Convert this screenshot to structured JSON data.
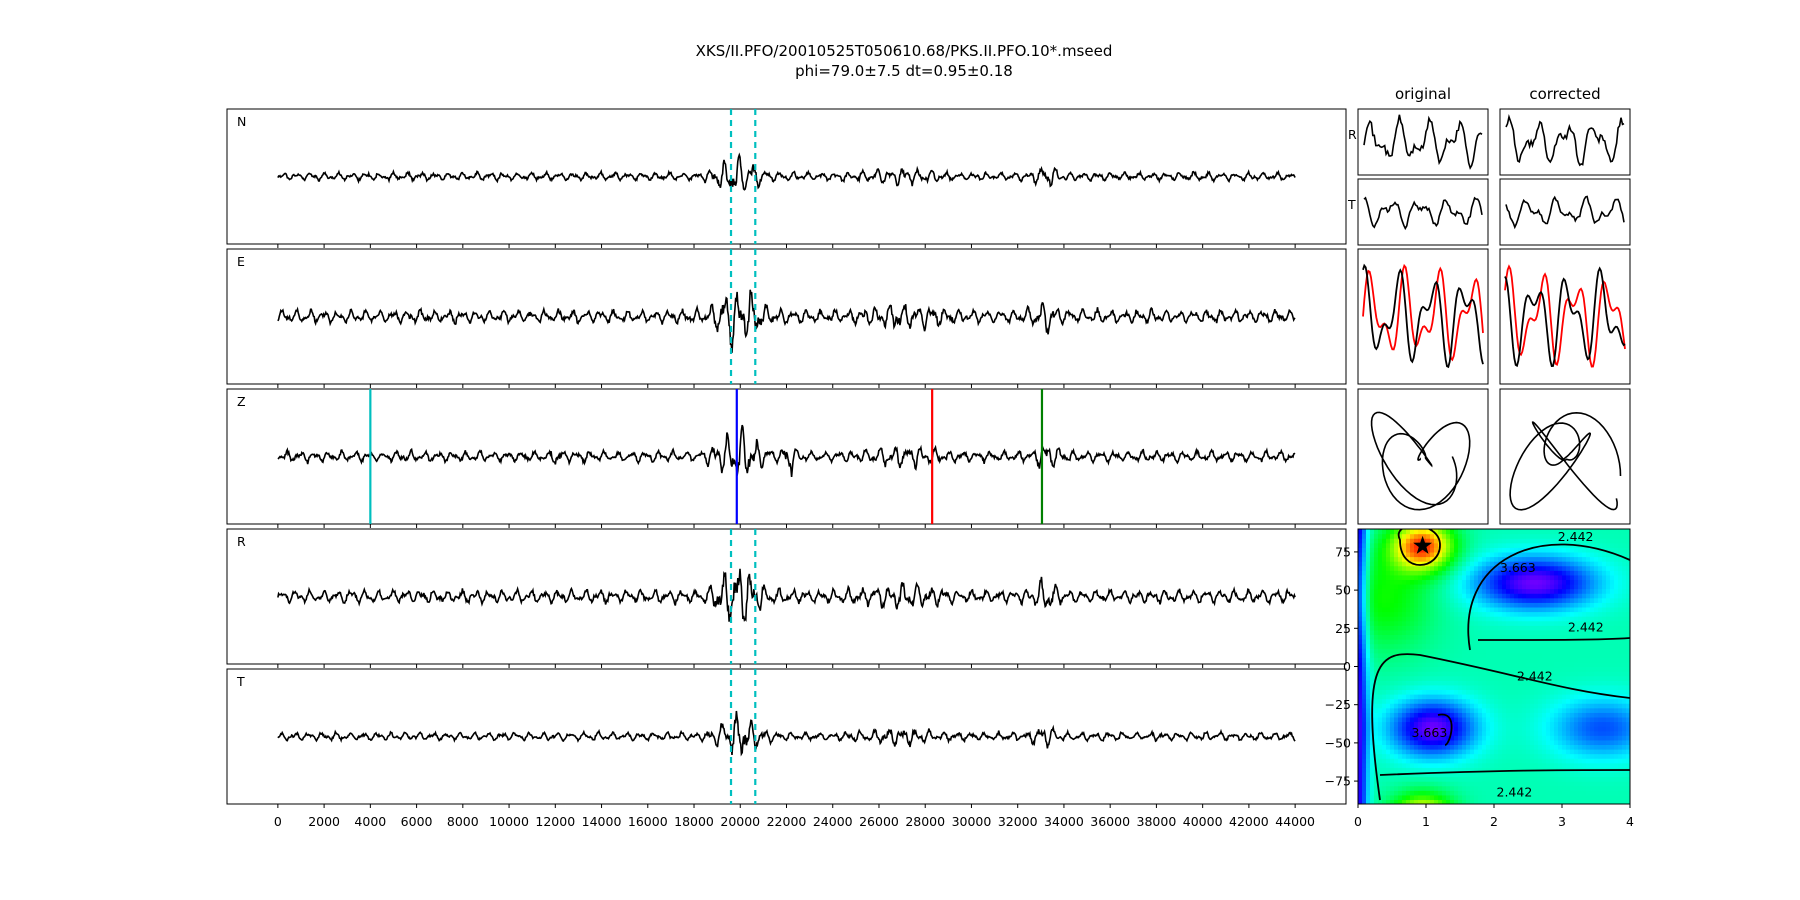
{
  "figure": {
    "title_line1": "XKS/II.PFO/20010525T050610.68/PKS.II.PFO.10*.mseed",
    "title_line2": "phi=79.0±7.5 dt=0.95±0.18"
  },
  "chart_data": [
    {
      "type": "line",
      "name": "waveform-panels",
      "panels": [
        {
          "label": "N",
          "seed": 11,
          "amp": 0.23,
          "markers": "dash"
        },
        {
          "label": "E",
          "seed": 23,
          "amp": 0.37,
          "markers": "dash"
        },
        {
          "label": "Z",
          "seed": 37,
          "amp": 0.3,
          "markers": "phases"
        },
        {
          "label": "R",
          "seed": 41,
          "amp": 0.37,
          "markers": "dash"
        },
        {
          "label": "T",
          "seed": 53,
          "amp": 0.24,
          "markers": "dash"
        }
      ],
      "xlim": [
        -2200,
        46200
      ],
      "x_ticks": [
        0,
        2000,
        4000,
        6000,
        8000,
        10000,
        12000,
        14000,
        16000,
        18000,
        20000,
        22000,
        24000,
        26000,
        28000,
        30000,
        32000,
        34000,
        36000,
        38000,
        40000,
        42000,
        44000
      ],
      "x_tick_labels": [
        "0",
        "2000",
        "4000",
        "6000",
        "8000",
        "10000",
        "12000",
        "14000",
        "16000",
        "18000",
        "20000",
        "22000",
        "24000",
        "26000",
        "28000",
        "30000",
        "32000",
        "34000",
        "36000",
        "38000",
        "40000",
        "42000",
        "44000"
      ],
      "trace_range": [
        0,
        44000
      ],
      "window_dashed": [
        19600,
        20650
      ],
      "phase_lines": [
        {
          "x": 4000,
          "color": "#00bfbf"
        },
        {
          "x": 19850,
          "color": "#0000ff"
        },
        {
          "x": 28300,
          "color": "#ff0000"
        },
        {
          "x": 33050,
          "color": "#008000"
        }
      ],
      "colors": {
        "trace": "#000000",
        "dashed": "#00bfbf"
      }
    },
    {
      "type": "line",
      "name": "particle-motion-panels",
      "columns": [
        "original",
        "corrected"
      ],
      "row_labels": [
        "R",
        "T"
      ],
      "colors": {
        "trace": "#000000",
        "second": "#ff0000"
      }
    },
    {
      "type": "heatmap",
      "name": "error-surface",
      "xlim": [
        0,
        4
      ],
      "ylim": [
        -90,
        90
      ],
      "x_ticks": [
        0,
        1,
        2,
        3,
        4
      ],
      "x_tick_labels": [
        "0",
        "1",
        "2",
        "3",
        "4"
      ],
      "y_ticks": [
        75,
        50,
        25,
        0,
        -25,
        -50,
        -75
      ],
      "y_tick_labels": [
        "75",
        "50",
        "25",
        "0",
        "−25",
        "−50",
        "−75"
      ],
      "best": {
        "dt": 0.95,
        "phi": 79.0
      },
      "contour_labels": [
        {
          "text": "2.442",
          "dt": 3.2,
          "phi": 82
        },
        {
          "text": "3.663",
          "dt": 2.35,
          "phi": 62
        },
        {
          "text": "2.442",
          "dt": 3.35,
          "phi": 23
        },
        {
          "text": "2.442",
          "dt": 2.6,
          "phi": -9
        },
        {
          "text": "3.663",
          "dt": 1.05,
          "phi": -46
        },
        {
          "text": "2.442",
          "dt": 2.3,
          "phi": -85
        }
      ],
      "colorscale": "hsv"
    }
  ]
}
